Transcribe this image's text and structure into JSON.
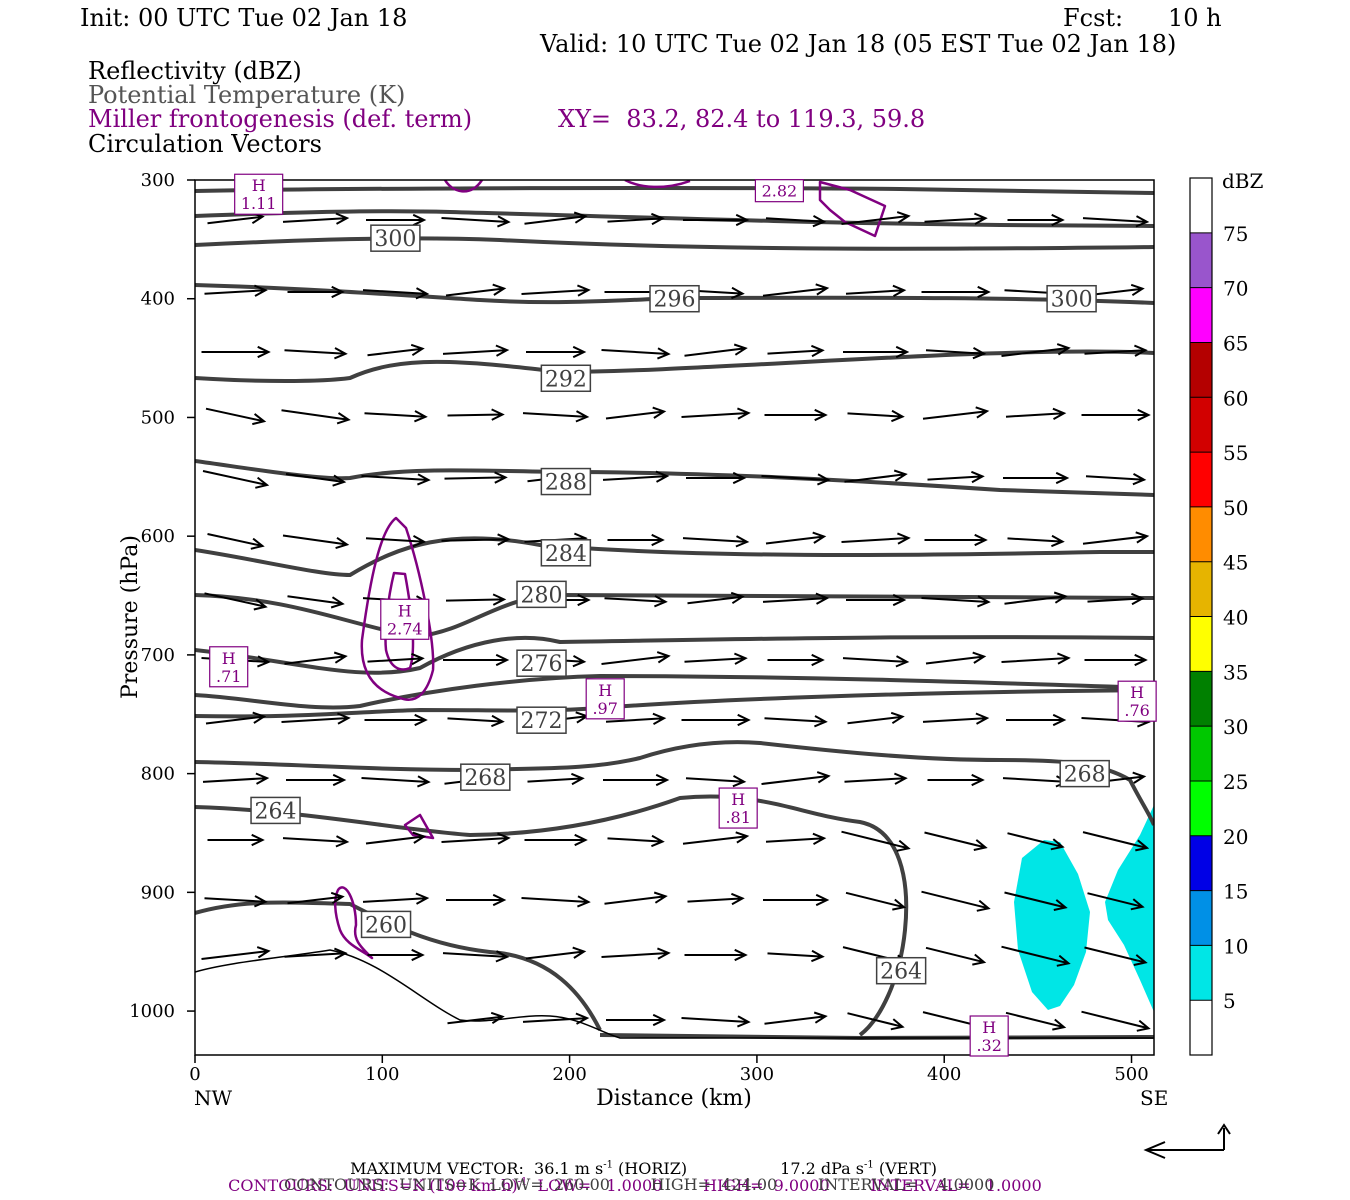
{
  "header": {
    "init": "Init: 00 UTC Tue 02 Jan 18",
    "fcst_label": "Fcst:",
    "fcst_value": "10 h",
    "valid": "Valid: 10 UTC Tue 02 Jan 18 (05 EST Tue 02 Jan 18)"
  },
  "legend_lines": {
    "reflectivity": "Reflectivity (dBZ)",
    "theta": "Potential Temperature (K)",
    "miller": "Miller frontogenesis (def. term)",
    "xy": "XY=  83.2, 82.4 to 119.3, 59.8",
    "vectors": "Circulation Vectors"
  },
  "colors": {
    "theta": "#404040",
    "miller": "#800080",
    "reflectivity_5": "#00e6e6",
    "reference": "#000000"
  },
  "footer": {
    "max_vector": "MAXIMUM VECTOR:  36.1 m s",
    "max_vector_exp": "-1",
    "max_vector_tail": " (HORIZ)",
    "vert": "17.2 dPa s",
    "vert_exp": "-1",
    "vert_tail": " (VERT)",
    "contours_miller": "CONTOURS:  UNITS=K (100 km h)",
    "contours_miller_exp": "-1",
    "contours_miller_tail": "  LOW=   1.0000        HIGH=  9.0000        INTERVAL=   1.0000",
    "contours_theta": "CONTOURS:  UNITS=K  LOW=  260.00        HIGH=  424.00        INTERVAL=    4.0000"
  },
  "chart_data": {
    "type": "cross-section",
    "xlabel": "Distance (km)",
    "ylabel": "Pressure (hPa)",
    "xlim": [
      0,
      512
    ],
    "ylim": [
      1037,
      300
    ],
    "x_ticks": [
      0,
      100,
      200,
      300,
      400,
      500
    ],
    "y_ticks": [
      300,
      400,
      500,
      600,
      700,
      800,
      900,
      1000
    ],
    "x_end_labels": [
      "NW",
      "SE"
    ],
    "theta_contour_labels": [
      {
        "text": "300",
        "x": 107,
        "p": 349
      },
      {
        "text": "296",
        "x": 256,
        "p": 400
      },
      {
        "text": "300",
        "x": 468,
        "p": 400
      },
      {
        "text": "292",
        "x": 198,
        "p": 467
      },
      {
        "text": "288",
        "x": 198,
        "p": 554
      },
      {
        "text": "284",
        "x": 198,
        "p": 614
      },
      {
        "text": "280",
        "x": 185,
        "p": 649
      },
      {
        "text": "276",
        "x": 185,
        "p": 707
      },
      {
        "text": "272",
        "x": 185,
        "p": 755
      },
      {
        "text": "268",
        "x": 155,
        "p": 803
      },
      {
        "text": "268",
        "x": 475,
        "p": 800
      },
      {
        "text": "264",
        "x": 43,
        "p": 831
      },
      {
        "text": "260",
        "x": 102,
        "p": 927
      },
      {
        "text": "264",
        "x": 377,
        "p": 966
      }
    ],
    "miller_labels": [
      {
        "h": "H",
        "v": "1.11",
        "x": 34,
        "p": 312
      },
      {
        "h": "H",
        "v": "2.74",
        "x": 112,
        "p": 670
      },
      {
        "h": "H",
        "v": ".71",
        "x": 18,
        "p": 710
      },
      {
        "h": "H",
        "v": ".97",
        "x": 219,
        "p": 737
      },
      {
        "h": "H",
        "v": ".81",
        "x": 290,
        "p": 829
      },
      {
        "h": "H",
        "v": ".76",
        "x": 503,
        "p": 739
      },
      {
        "h": "H",
        "v": ".32",
        "x": 424,
        "p": 1021
      },
      {
        "h": "",
        "v": "2.82",
        "x": 312,
        "p": 309
      }
    ],
    "colorbar": {
      "title": "dBZ",
      "levels": [
        5,
        10,
        15,
        20,
        25,
        30,
        35,
        40,
        45,
        50,
        55,
        60,
        65,
        70,
        75
      ],
      "colors": [
        "#ffffff",
        "#00e6e6",
        "#0090e6",
        "#0000e6",
        "#00ff00",
        "#00c800",
        "#008000",
        "#ffff00",
        "#e6b400",
        "#ff8c00",
        "#ff0000",
        "#d20000",
        "#b40000",
        "#ff00ff",
        "#9955cc",
        "#ffffff"
      ]
    }
  }
}
